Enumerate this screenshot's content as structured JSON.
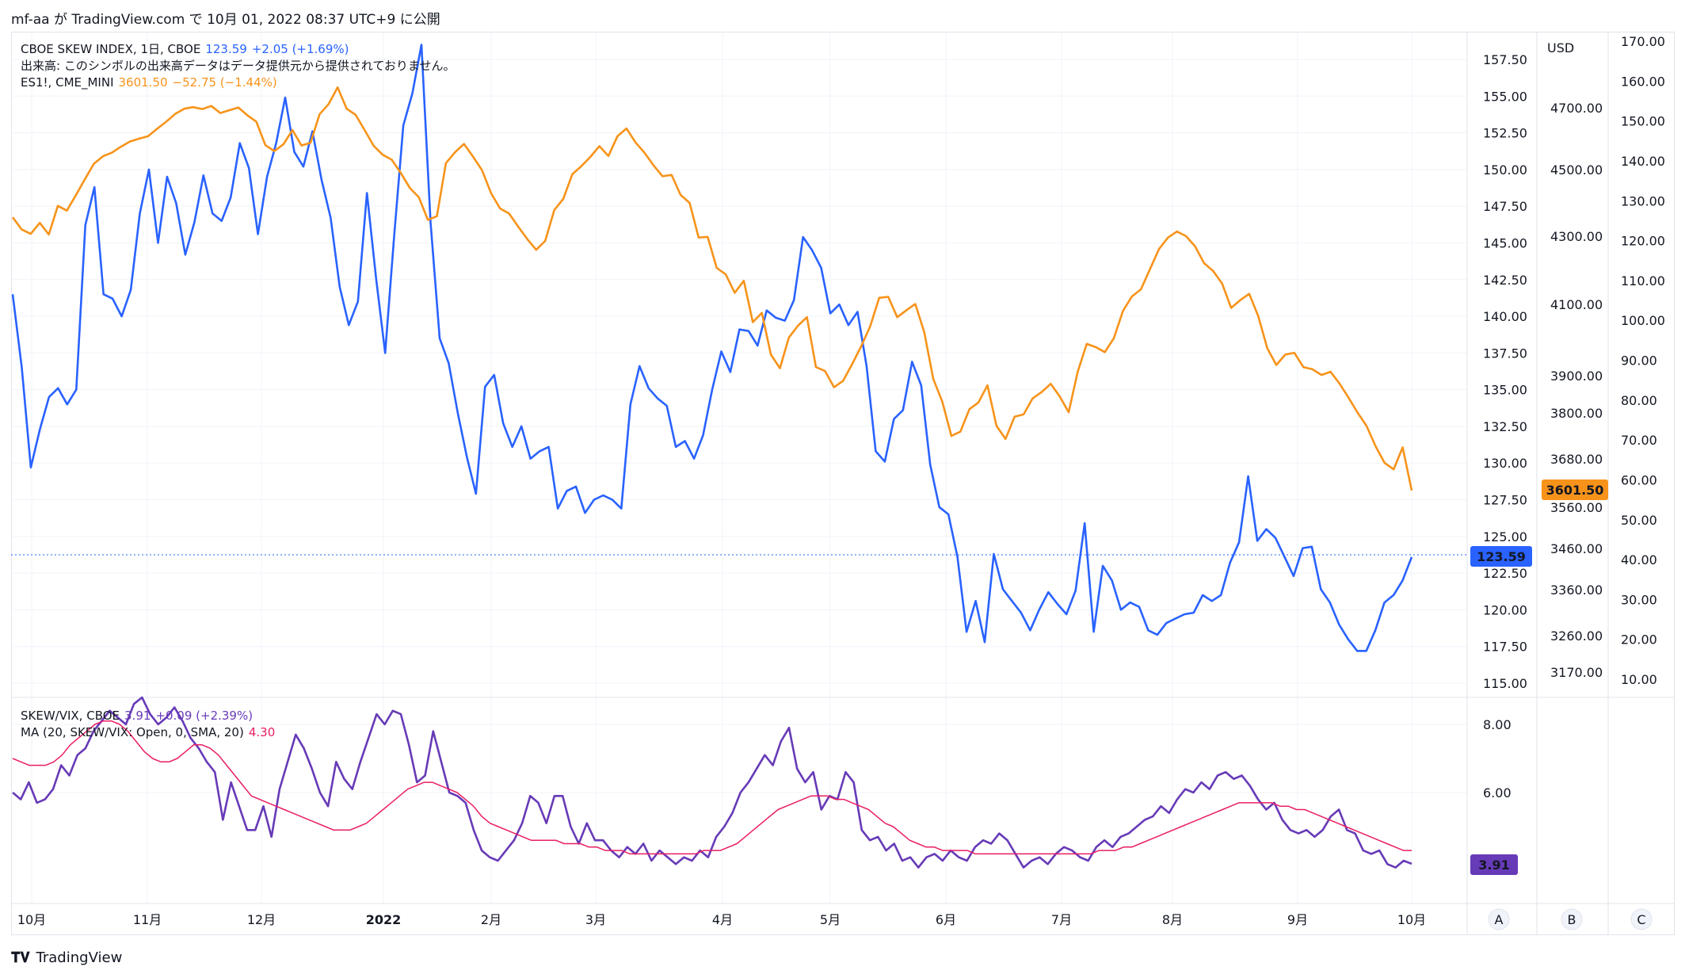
{
  "header": {
    "text": "mf-aa が TradingView.com で 10月 01, 2022 08:37 UTC+9 に公開"
  },
  "legend_main": {
    "skew_name": "CBOE SKEW INDEX, 1日, CBOE",
    "skew_value": "123.59",
    "skew_change": "+2.05 (+1.69%)",
    "volume_note": "出来高: このシンボルの出来高データはデータ提供元から提供されておりません。",
    "es_name": "ES1!, CME_MINI",
    "es_value": "3601.50",
    "es_change": "−52.75 (−1.44%)"
  },
  "legend_lower": {
    "ratio_name": "SKEW/VIX, CBOE",
    "ratio_value": "3.91",
    "ratio_change": "+0.09 (+2.39%)",
    "ma_name": "MA (20, SKEW/VIX: Open, 0, SMA, 20)",
    "ma_value": "4.30"
  },
  "colors": {
    "skew": "#2962ff",
    "es": "#f7931a",
    "ratio": "#673ab7",
    "ma": "#e91e63"
  },
  "scale_labels": {
    "usd": "USD",
    "a": "A",
    "b": "B",
    "c": "C"
  },
  "footer": {
    "brand": "TradingView"
  },
  "chart_data": {
    "type": "line",
    "x_ticks": [
      "10月",
      "11月",
      "12月",
      "2022",
      "2月",
      "3月",
      "4月",
      "5月",
      "6月",
      "7月",
      "8月",
      "9月",
      "10月"
    ],
    "axes": {
      "skew_axis": {
        "ylim": [
          115,
          157.5
        ],
        "ticks": [
          "157.50",
          "155.00",
          "152.50",
          "150.00",
          "147.50",
          "145.00",
          "142.50",
          "140.00",
          "137.50",
          "135.00",
          "132.50",
          "130.00",
          "127.50",
          "125.00",
          "122.50",
          "120.00",
          "117.50",
          "115.00"
        ]
      },
      "es_axis": {
        "unit": "USD",
        "ticks": [
          "4700.00",
          "4500.00",
          "4300.00",
          "4100.00",
          "3900.00",
          "3800.00",
          "3680.00",
          "3560.00",
          "3460.00",
          "3360.00",
          "3260.00",
          "3170.00"
        ]
      },
      "vix_axis": {
        "ylim": [
          10,
          170
        ],
        "ticks": [
          "170.00",
          "160.00",
          "150.00",
          "140.00",
          "130.00",
          "120.00",
          "110.00",
          "100.00",
          "90.00",
          "80.00",
          "70.00",
          "60.00",
          "50.00",
          "40.00",
          "30.00",
          "20.00",
          "10.00"
        ]
      },
      "ratio_axis": {
        "ticks": [
          "8.00",
          "6.00"
        ]
      }
    },
    "last_labels": {
      "skew": "123.59",
      "es": "3601.50",
      "ratio": "3.91"
    },
    "series": [
      {
        "name": "CBOE SKEW INDEX",
        "axis": "skew",
        "values": [
          141.5,
          136.5,
          129.7,
          132.3,
          134.5,
          135.1,
          134.0,
          135.0,
          146.2,
          148.8,
          141.5,
          141.2,
          140.0,
          141.8,
          147.0,
          150.0,
          145.0,
          149.5,
          147.7,
          144.2,
          146.4,
          149.6,
          147.0,
          146.5,
          148.1,
          151.8,
          150.1,
          145.6,
          149.5,
          151.8,
          154.9,
          151.2,
          150.2,
          152.6,
          149.3,
          146.7,
          142.0,
          139.4,
          141.0,
          148.4,
          142.6,
          137.5,
          145.5,
          153.0,
          155.2,
          158.5,
          146.4,
          138.5,
          136.8,
          133.4,
          130.4,
          127.9,
          135.2,
          136.0,
          132.7,
          131.1,
          132.5,
          130.3,
          130.8,
          131.1,
          126.9,
          128.1,
          128.4,
          126.6,
          127.5,
          127.8,
          127.5,
          126.9,
          134.0,
          136.6,
          135.1,
          134.4,
          133.9,
          131.1,
          131.5,
          130.3,
          131.9,
          135.0,
          137.6,
          136.2,
          139.1,
          139.0,
          138.0,
          140.4,
          139.9,
          139.7,
          141.1,
          145.4,
          144.5,
          143.3,
          140.2,
          140.8,
          139.4,
          140.3,
          136.6,
          130.8,
          130.1,
          133.0,
          133.6,
          136.9,
          135.3,
          129.9,
          127.0,
          126.5,
          123.6,
          118.5,
          120.6,
          117.8,
          123.8,
          121.4,
          120.6,
          119.8,
          118.6,
          120.0,
          121.2,
          120.4,
          119.7,
          121.3,
          125.9,
          118.5,
          123.0,
          122.0,
          120.0,
          120.5,
          120.2,
          118.6,
          118.3,
          119.1,
          119.4,
          119.7,
          119.8,
          121.0,
          120.6,
          121.0,
          123.2,
          124.6,
          129.1,
          124.7,
          125.5,
          124.9,
          123.6,
          122.3,
          124.2,
          124.3,
          121.4,
          120.5,
          119.0,
          118.0,
          117.2,
          117.2,
          118.6,
          120.5,
          121.0,
          122.0,
          123.59
        ]
      },
      {
        "name": "ES1!",
        "axis": "es",
        "values": [
          4357,
          4320,
          4307,
          4340,
          4305,
          4391,
          4377,
          4423,
          4471,
          4519,
          4543,
          4555,
          4574,
          4591,
          4600,
          4608,
          4632,
          4655,
          4680,
          4697,
          4702,
          4696,
          4706,
          4683,
          4692,
          4701,
          4676,
          4655,
          4579,
          4560,
          4582,
          4628,
          4578,
          4587,
          4679,
          4712,
          4766,
          4697,
          4677,
          4628,
          4577,
          4548,
          4532,
          4490,
          4445,
          4417,
          4349,
          4360,
          4521,
          4556,
          4583,
          4542,
          4498,
          4429,
          4383,
          4368,
          4329,
          4292,
          4260,
          4286,
          4378,
          4412,
          4486,
          4511,
          4541,
          4576,
          4544,
          4608,
          4633,
          4588,
          4555,
          4514,
          4480,
          4484,
          4424,
          4400,
          4296,
          4298,
          4207,
          4188,
          4134,
          4169,
          4050,
          4076,
          3959,
          3921,
          4007,
          4040,
          4064,
          3924,
          3913,
          3869,
          3886,
          3932,
          3982,
          4038,
          4119,
          4122,
          4064,
          4083,
          4101,
          4022,
          3891,
          3830,
          3740,
          3751,
          3810,
          3828,
          3874,
          3766,
          3732,
          3790,
          3796,
          3839,
          3856,
          3878,
          3844,
          3802,
          3911,
          3989,
          3980,
          3966,
          4005,
          4081,
          4123,
          4144,
          4203,
          4262,
          4296,
          4314,
          4300,
          4270,
          4221,
          4198,
          4161,
          4090,
          4112,
          4131,
          4067,
          3977,
          3930,
          3959,
          3964,
          3924,
          3918,
          3902,
          3911,
          3879,
          3841,
          3801,
          3766,
          3713,
          3670,
          3654,
          3710,
          3601.5
        ]
      },
      {
        "name": "SKEW/VIX",
        "axis": "ratio",
        "values": [
          6.0,
          5.8,
          6.3,
          5.7,
          5.8,
          6.1,
          6.8,
          6.5,
          7.1,
          7.3,
          7.8,
          8.1,
          8.4,
          8.2,
          8.0,
          8.6,
          8.9,
          8.3,
          8.0,
          8.2,
          8.5,
          8.1,
          7.6,
          7.3,
          6.9,
          6.6,
          5.2,
          6.3,
          5.6,
          4.9,
          4.9,
          5.6,
          4.7,
          6.1,
          6.9,
          7.7,
          7.3,
          6.7,
          6.0,
          5.6,
          6.9,
          6.4,
          6.1,
          6.9,
          7.6,
          8.3,
          8.0,
          8.4,
          8.3,
          7.4,
          6.3,
          6.5,
          7.8,
          6.9,
          6.0,
          5.9,
          5.7,
          4.9,
          4.3,
          4.1,
          4.0,
          4.3,
          4.6,
          5.1,
          5.9,
          5.7,
          5.1,
          5.9,
          5.9,
          5.0,
          4.5,
          5.1,
          4.6,
          4.6,
          4.3,
          4.1,
          4.4,
          4.2,
          4.5,
          4.0,
          4.3,
          4.1,
          3.9,
          4.1,
          4.0,
          4.3,
          4.1,
          4.7,
          5.0,
          5.4,
          6.0,
          6.3,
          6.7,
          7.1,
          6.8,
          7.5,
          7.9,
          6.7,
          6.3,
          6.6,
          5.5,
          5.9,
          5.8,
          6.6,
          6.3,
          4.9,
          4.6,
          4.7,
          4.3,
          4.5,
          4.0,
          4.1,
          3.8,
          4.1,
          4.2,
          4.0,
          4.3,
          4.1,
          4.0,
          4.4,
          4.6,
          4.5,
          4.8,
          4.6,
          4.2,
          3.8,
          4.0,
          4.1,
          3.9,
          4.2,
          4.4,
          4.3,
          4.1,
          4.0,
          4.4,
          4.6,
          4.4,
          4.7,
          4.8,
          5.0,
          5.2,
          5.3,
          5.6,
          5.4,
          5.8,
          6.1,
          6.0,
          6.3,
          6.1,
          6.5,
          6.6,
          6.4,
          6.5,
          6.2,
          5.8,
          5.5,
          5.7,
          5.2,
          4.9,
          4.8,
          4.9,
          4.7,
          4.9,
          5.3,
          5.5,
          4.9,
          4.8,
          4.3,
          4.2,
          4.3,
          3.9,
          3.8,
          4.0,
          3.91
        ]
      },
      {
        "name": "MA (20, SKEW/VIX)",
        "axis": "ratio",
        "values": [
          7.0,
          6.9,
          6.8,
          6.8,
          6.8,
          6.9,
          7.1,
          7.4,
          7.6,
          7.8,
          8.0,
          8.1,
          8.1,
          8.0,
          7.8,
          7.5,
          7.2,
          7.0,
          6.9,
          6.9,
          7.0,
          7.2,
          7.4,
          7.4,
          7.3,
          7.1,
          6.8,
          6.5,
          6.2,
          5.9,
          5.8,
          5.7,
          5.6,
          5.5,
          5.4,
          5.3,
          5.2,
          5.1,
          5.0,
          4.9,
          4.9,
          4.9,
          5.0,
          5.1,
          5.3,
          5.5,
          5.7,
          5.9,
          6.1,
          6.2,
          6.3,
          6.3,
          6.2,
          6.1,
          6.0,
          5.8,
          5.6,
          5.3,
          5.1,
          5.0,
          4.9,
          4.8,
          4.7,
          4.6,
          4.6,
          4.6,
          4.6,
          4.5,
          4.5,
          4.5,
          4.4,
          4.4,
          4.3,
          4.3,
          4.3,
          4.2,
          4.2,
          4.2,
          4.2,
          4.2,
          4.2,
          4.2,
          4.2,
          4.2,
          4.3,
          4.3,
          4.3,
          4.4,
          4.5,
          4.7,
          4.9,
          5.1,
          5.3,
          5.5,
          5.6,
          5.7,
          5.8,
          5.9,
          5.9,
          5.9,
          5.8,
          5.8,
          5.7,
          5.6,
          5.5,
          5.3,
          5.1,
          5.0,
          4.8,
          4.6,
          4.5,
          4.4,
          4.4,
          4.3,
          4.3,
          4.3,
          4.3,
          4.2,
          4.2,
          4.2,
          4.2,
          4.2,
          4.2,
          4.2,
          4.2,
          4.2,
          4.2,
          4.2,
          4.2,
          4.2,
          4.2,
          4.2,
          4.3,
          4.3,
          4.3,
          4.4,
          4.4,
          4.5,
          4.6,
          4.7,
          4.8,
          4.9,
          5.0,
          5.1,
          5.2,
          5.3,
          5.4,
          5.5,
          5.6,
          5.7,
          5.7,
          5.7,
          5.7,
          5.7,
          5.6,
          5.6,
          5.5,
          5.5,
          5.4,
          5.3,
          5.2,
          5.1,
          5.0,
          4.9,
          4.8,
          4.7,
          4.6,
          4.5,
          4.4,
          4.3,
          4.3
        ]
      }
    ]
  }
}
